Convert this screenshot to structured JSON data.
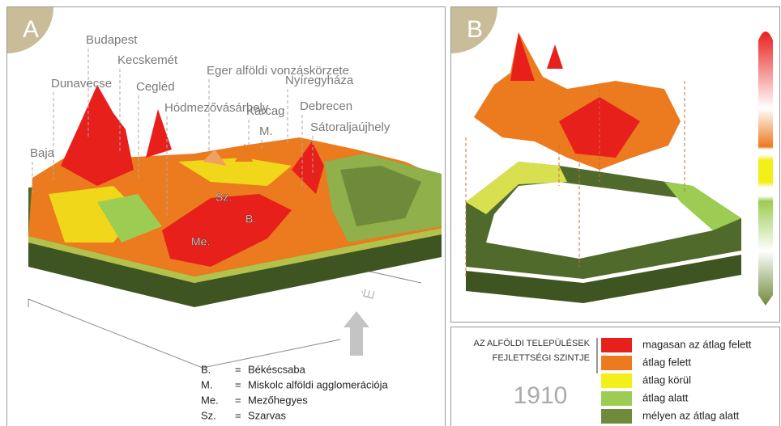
{
  "panels": [
    {
      "letter": "A"
    },
    {
      "letter": "B"
    }
  ],
  "city_labels": [
    "Budapest",
    "Dunavecse",
    "Kecskemét",
    "Cegléd",
    "Hódmezővásárhely",
    "Eger alföldi vonzáskörzete",
    "Nyíregyháza",
    "Karcag",
    "M.",
    "Debrecen",
    "Sátoraljaújhely",
    "Baja"
  ],
  "map_labels": [
    "Sz.",
    "B.",
    "Me."
  ],
  "north": "É",
  "abbreviations": [
    {
      "abbr": "B.",
      "sign": "=",
      "name": "Békéscsaba"
    },
    {
      "abbr": "M.",
      "sign": "=",
      "name": "Miskolc alföldi agglomerációja"
    },
    {
      "abbr": "Me.",
      "sign": "=",
      "name": "Mezőhegyes"
    },
    {
      "abbr": "Sz.",
      "sign": "=",
      "name": "Szarvas"
    }
  ],
  "legend": {
    "title": [
      "AZ ALFÖLDI TELEPÜLÉSEK",
      "FEJLETTSÉGI SZINTJE"
    ],
    "year": "1910",
    "items": [
      {
        "label": "magasan az átlag felett",
        "color": "#e8201c"
      },
      {
        "label": "átlag felett",
        "color": "#ec7a1e"
      },
      {
        "label": "átlag körül",
        "color": "#f2ef19"
      },
      {
        "label": "átlag alatt",
        "color": "#9ccc52"
      },
      {
        "label": "mélyen az átlag alatt",
        "color": "#6e8a3a"
      }
    ]
  }
}
